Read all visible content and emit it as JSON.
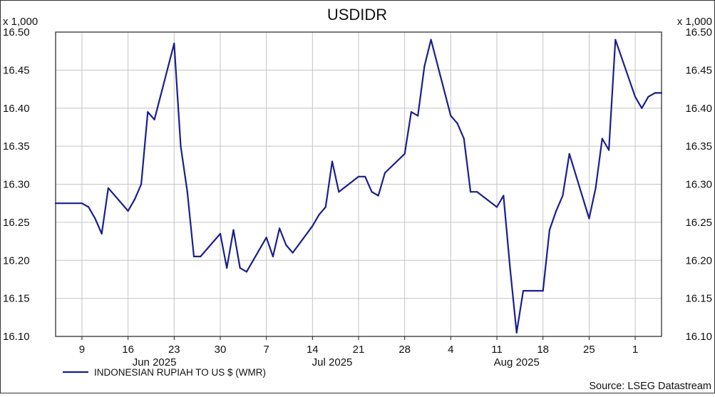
{
  "chart_data": {
    "type": "line",
    "title": "USDIDR",
    "y_scale_note": "x 1,000",
    "ylim": [
      16.1,
      16.5
    ],
    "y_ticks": [
      "16.10",
      "16.15",
      "16.20",
      "16.25",
      "16.30",
      "16.35",
      "16.40",
      "16.45",
      "16.50"
    ],
    "x_ticks": [
      "9",
      "16",
      "23",
      "30",
      "7",
      "14",
      "21",
      "28",
      "4",
      "11",
      "18",
      "25",
      "1"
    ],
    "x_tick_dates": [
      "2025-06-09",
      "2025-06-16",
      "2025-06-23",
      "2025-06-30",
      "2025-07-07",
      "2025-07-14",
      "2025-07-21",
      "2025-07-28",
      "2025-08-04",
      "2025-08-11",
      "2025-08-18",
      "2025-08-25",
      "2025-09-01"
    ],
    "xlim": [
      "2025-06-05",
      "2025-09-05"
    ],
    "month_labels": [
      {
        "label": "Jun 2025",
        "date": "2025-06-20"
      },
      {
        "label": "Jul 2025",
        "date": "2025-07-17"
      },
      {
        "label": "Aug 2025",
        "date": "2025-08-14"
      }
    ],
    "grid": true,
    "series": [
      {
        "name": "INDONESIAN RUPIAH TO US $ (WMR)",
        "color": "#1a1f8c",
        "points": [
          [
            "2025-06-05",
            16.275
          ],
          [
            "2025-06-06",
            16.275
          ],
          [
            "2025-06-09",
            16.275
          ],
          [
            "2025-06-10",
            16.27
          ],
          [
            "2025-06-11",
            16.255
          ],
          [
            "2025-06-12",
            16.235
          ],
          [
            "2025-06-13",
            16.295
          ],
          [
            "2025-06-16",
            16.265
          ],
          [
            "2025-06-17",
            16.28
          ],
          [
            "2025-06-18",
            16.3
          ],
          [
            "2025-06-19",
            16.395
          ],
          [
            "2025-06-20",
            16.385
          ],
          [
            "2025-06-23",
            16.485
          ],
          [
            "2025-06-24",
            16.35
          ],
          [
            "2025-06-25",
            16.29
          ],
          [
            "2025-06-26",
            16.205
          ],
          [
            "2025-06-27",
            16.205
          ],
          [
            "2025-06-30",
            16.235
          ],
          [
            "2025-07-01",
            16.19
          ],
          [
            "2025-07-02",
            16.24
          ],
          [
            "2025-07-03",
            16.19
          ],
          [
            "2025-07-04",
            16.185
          ],
          [
            "2025-07-07",
            16.23
          ],
          [
            "2025-07-08",
            16.205
          ],
          [
            "2025-07-09",
            16.242
          ],
          [
            "2025-07-10",
            16.22
          ],
          [
            "2025-07-11",
            16.21
          ],
          [
            "2025-07-14",
            16.245
          ],
          [
            "2025-07-15",
            16.26
          ],
          [
            "2025-07-16",
            16.27
          ],
          [
            "2025-07-17",
            16.33
          ],
          [
            "2025-07-18",
            16.29
          ],
          [
            "2025-07-21",
            16.31
          ],
          [
            "2025-07-22",
            16.31
          ],
          [
            "2025-07-23",
            16.29
          ],
          [
            "2025-07-24",
            16.285
          ],
          [
            "2025-07-25",
            16.315
          ],
          [
            "2025-07-28",
            16.34
          ],
          [
            "2025-07-29",
            16.395
          ],
          [
            "2025-07-30",
            16.39
          ],
          [
            "2025-07-31",
            16.455
          ],
          [
            "2025-08-01",
            16.49
          ],
          [
            "2025-08-04",
            16.39
          ],
          [
            "2025-08-05",
            16.38
          ],
          [
            "2025-08-06",
            16.36
          ],
          [
            "2025-08-07",
            16.29
          ],
          [
            "2025-08-08",
            16.29
          ],
          [
            "2025-08-11",
            16.27
          ],
          [
            "2025-08-12",
            16.285
          ],
          [
            "2025-08-13",
            16.19
          ],
          [
            "2025-08-14",
            16.105
          ],
          [
            "2025-08-15",
            16.16
          ],
          [
            "2025-08-18",
            16.16
          ],
          [
            "2025-08-19",
            16.24
          ],
          [
            "2025-08-20",
            16.265
          ],
          [
            "2025-08-21",
            16.285
          ],
          [
            "2025-08-22",
            16.34
          ],
          [
            "2025-08-25",
            16.255
          ],
          [
            "2025-08-26",
            16.295
          ],
          [
            "2025-08-27",
            16.36
          ],
          [
            "2025-08-28",
            16.345
          ],
          [
            "2025-08-29",
            16.49
          ],
          [
            "2025-09-01",
            16.415
          ],
          [
            "2025-09-02",
            16.4
          ],
          [
            "2025-09-03",
            16.415
          ],
          [
            "2025-09-04",
            16.42
          ],
          [
            "2025-09-05",
            16.42
          ]
        ]
      }
    ],
    "legend_placement": "bottom-left",
    "source": "Source: LSEG Datastream"
  }
}
